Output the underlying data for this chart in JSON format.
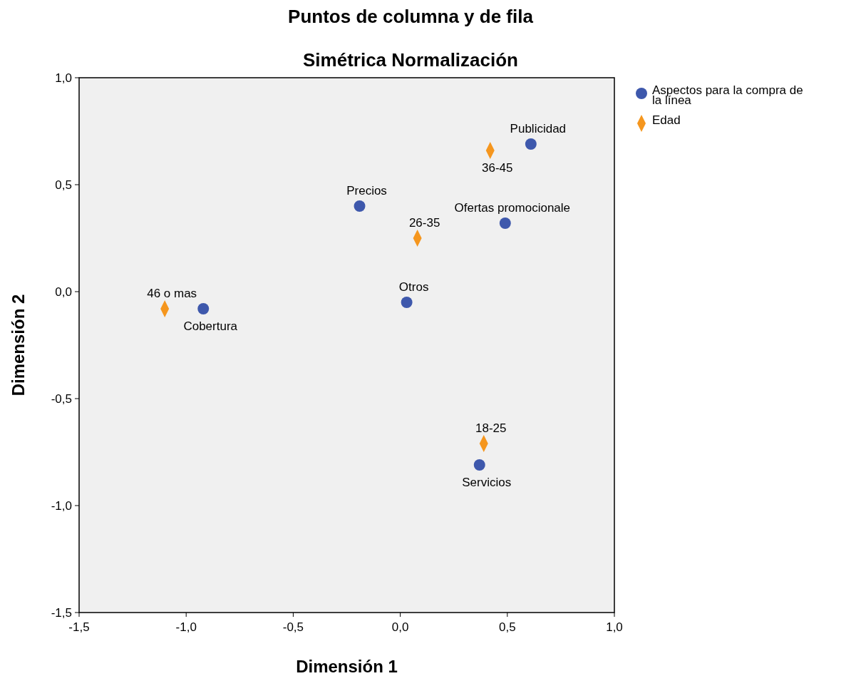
{
  "chart_data": {
    "type": "scatter",
    "title": "Puntos de columna y de fila",
    "subtitle": "Simétrica Normalización",
    "xlabel": "Dimensión 1",
    "ylabel": "Dimensión 2",
    "xlim": [
      -1.5,
      1.0
    ],
    "ylim": [
      -1.5,
      1.0
    ],
    "xticks": [
      {
        "value": -1.5,
        "label": "-1,5"
      },
      {
        "value": -1.0,
        "label": "-1,0"
      },
      {
        "value": -0.5,
        "label": "-0,5"
      },
      {
        "value": 0.0,
        "label": "0,0"
      },
      {
        "value": 0.5,
        "label": "0,5"
      },
      {
        "value": 1.0,
        "label": "1,0"
      }
    ],
    "yticks": [
      {
        "value": -1.5,
        "label": "-1,5"
      },
      {
        "value": -1.0,
        "label": "-1,0"
      },
      {
        "value": -0.5,
        "label": "-0,5"
      },
      {
        "value": 0.0,
        "label": "0,0"
      },
      {
        "value": 0.5,
        "label": "0,5"
      },
      {
        "value": 1.0,
        "label": "1,0"
      }
    ],
    "legend": "top right",
    "grid": false,
    "series": [
      {
        "name": "Aspectos para la compra de la línea",
        "color": "#3e58ac",
        "marker": "circle",
        "x": [
          0.61,
          -0.19,
          0.49,
          0.03,
          -0.92,
          0.37
        ],
        "values": [
          0.69,
          0.4,
          0.32,
          -0.05,
          -0.08,
          -0.81
        ]
      },
      {
        "name": "Edad",
        "color": "#f5961e",
        "marker": "diamond",
        "x": [
          0.42,
          0.08,
          -1.1,
          0.39
        ],
        "values": [
          0.66,
          0.25,
          -0.08,
          -0.71
        ]
      }
    ],
    "annotations": [
      {
        "text": "Publicidad",
        "x": 0.61,
        "y": 0.69
      },
      {
        "text": "Precios",
        "x": -0.19,
        "y": 0.4
      },
      {
        "text": "Ofertas promocionale",
        "x": 0.49,
        "y": 0.32
      },
      {
        "text": "Otros",
        "x": 0.03,
        "y": -0.05
      },
      {
        "text": "Cobertura",
        "x": -0.92,
        "y": -0.08
      },
      {
        "text": "Servicios",
        "x": 0.37,
        "y": -0.81
      },
      {
        "text": "36-45",
        "x": 0.42,
        "y": 0.66
      },
      {
        "text": "26-35",
        "x": 0.08,
        "y": 0.25
      },
      {
        "text": "46 o mas",
        "x": -1.1,
        "y": -0.08
      },
      {
        "text": "18-25",
        "x": 0.39,
        "y": -0.71
      }
    ]
  }
}
